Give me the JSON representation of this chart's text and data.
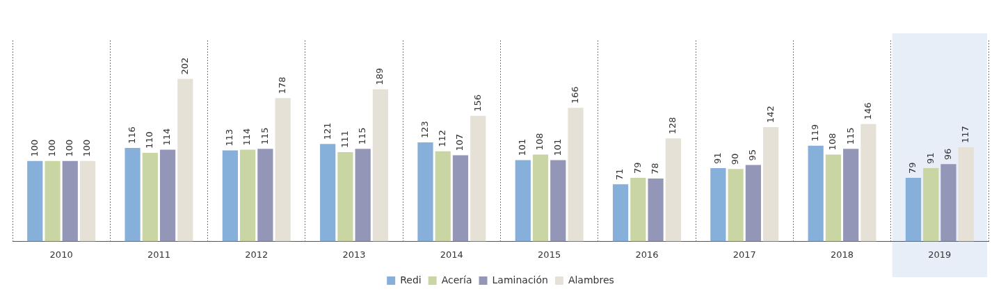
{
  "chart_data": {
    "type": "bar",
    "categories": [
      "2010",
      "2011",
      "2012",
      "2013",
      "2014",
      "2015",
      "2016",
      "2017",
      "2018",
      "2019"
    ],
    "series": [
      {
        "name": "Redi",
        "color": "#86b0d9",
        "values": [
          100,
          116,
          113,
          121,
          123,
          101,
          71,
          91,
          119,
          79
        ]
      },
      {
        "name": "Acería",
        "color": "#c9d6a4",
        "values": [
          100,
          110,
          114,
          111,
          112,
          108,
          79,
          90,
          108,
          91
        ]
      },
      {
        "name": "Laminación",
        "color": "#9496b8",
        "values": [
          100,
          114,
          115,
          115,
          107,
          101,
          78,
          95,
          115,
          96
        ]
      },
      {
        "name": "Alambres",
        "color": "#e5e1d6",
        "values": [
          100,
          202,
          178,
          189,
          156,
          166,
          128,
          142,
          146,
          117
        ]
      }
    ],
    "data_labels": true,
    "grid": "x",
    "legend": "bottom",
    "tick_labels": "x",
    "bands": [
      {
        "axis": "x",
        "from": "2019",
        "to": "2019",
        "color": "#e8eef7"
      }
    ]
  }
}
